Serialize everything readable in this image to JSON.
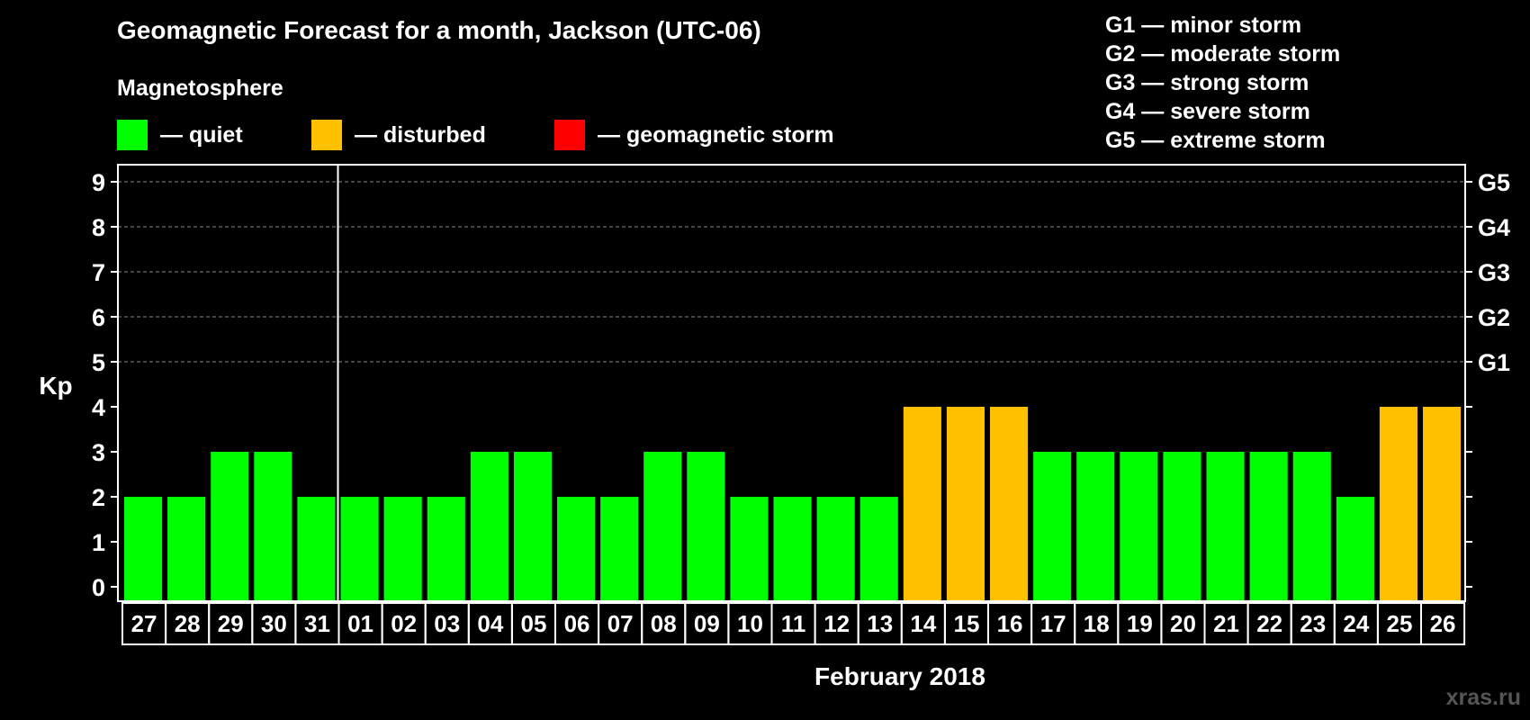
{
  "title": "Geomagnetic Forecast for a month, Jackson (UTC-06)",
  "legend": {
    "heading": "Magnetosphere",
    "items": [
      {
        "label": "— quiet",
        "color": "#00ff00"
      },
      {
        "label": "— disturbed",
        "color": "#ffc000"
      },
      {
        "label": "— geomagnetic storm",
        "color": "#ff0000"
      }
    ]
  },
  "storm_scale": [
    "G1 — minor storm",
    "G2 — moderate storm",
    "G3 — strong storm",
    "G4 — severe storm",
    "G5 — extreme storm"
  ],
  "watermark": "xras.ru",
  "chart_data": {
    "type": "bar",
    "ylabel": "Kp",
    "xlabel": "February 2018",
    "ylim": [
      0,
      9
    ],
    "yticks": [
      0,
      1,
      2,
      3,
      4,
      5,
      6,
      7,
      8,
      9
    ],
    "right_ticks": [
      {
        "kp": 5,
        "label": "G1"
      },
      {
        "kp": 6,
        "label": "G2"
      },
      {
        "kp": 7,
        "label": "G3"
      },
      {
        "kp": 8,
        "label": "G4"
      },
      {
        "kp": 9,
        "label": "G5"
      }
    ],
    "grid": true,
    "month_divider_after": "31",
    "categories": [
      "27",
      "28",
      "29",
      "30",
      "31",
      "01",
      "02",
      "03",
      "04",
      "05",
      "06",
      "07",
      "08",
      "09",
      "10",
      "11",
      "12",
      "13",
      "14",
      "15",
      "16",
      "17",
      "18",
      "19",
      "20",
      "21",
      "22",
      "23",
      "24",
      "25",
      "26"
    ],
    "values": [
      2,
      2,
      3,
      3,
      2,
      2,
      2,
      2,
      3,
      3,
      2,
      2,
      3,
      3,
      2,
      2,
      2,
      2,
      4,
      4,
      4,
      3,
      3,
      3,
      3,
      3,
      3,
      3,
      2,
      4,
      4
    ],
    "status": [
      "quiet",
      "quiet",
      "quiet",
      "quiet",
      "quiet",
      "quiet",
      "quiet",
      "quiet",
      "quiet",
      "quiet",
      "quiet",
      "quiet",
      "quiet",
      "quiet",
      "quiet",
      "quiet",
      "quiet",
      "quiet",
      "disturbed",
      "disturbed",
      "disturbed",
      "quiet",
      "quiet",
      "quiet",
      "quiet",
      "quiet",
      "quiet",
      "quiet",
      "quiet",
      "disturbed",
      "disturbed"
    ],
    "status_colors": {
      "quiet": "#00ff00",
      "disturbed": "#ffc000",
      "storm": "#ff0000"
    }
  }
}
